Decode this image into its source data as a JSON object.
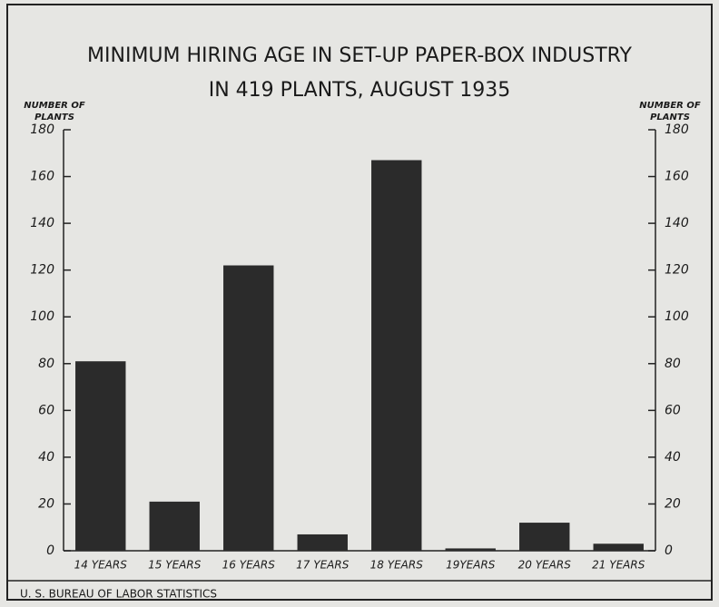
{
  "chart_data": {
    "type": "bar",
    "title": [
      "MINIMUM HIRING AGE IN SET-UP PAPER-BOX INDUSTRY",
      "IN 419 PLANTS, AUGUST 1935"
    ],
    "y_label": [
      "NUMBER OF",
      "PLANTS"
    ],
    "y2_label": [
      "NUMBER OF",
      "PLANTS"
    ],
    "categories": [
      "14 YEARS",
      "15 YEARS",
      "16 YEARS",
      "17 YEARS",
      "18 YEARS",
      "19YEARS",
      "20 YEARS",
      "21 YEARS"
    ],
    "values": [
      81,
      21,
      122,
      7,
      167,
      1,
      12,
      3
    ],
    "color": "#2b2b2b",
    "ylim": [
      0,
      180
    ],
    "yticks": [
      0,
      20,
      40,
      60,
      80,
      100,
      120,
      140,
      160,
      180
    ],
    "y2lim": [
      0,
      180
    ],
    "y2ticks": [
      0,
      20,
      40,
      60,
      80,
      100,
      120,
      140,
      160,
      180
    ],
    "source": "U. S. BUREAU OF LABOR STATISTICS"
  }
}
